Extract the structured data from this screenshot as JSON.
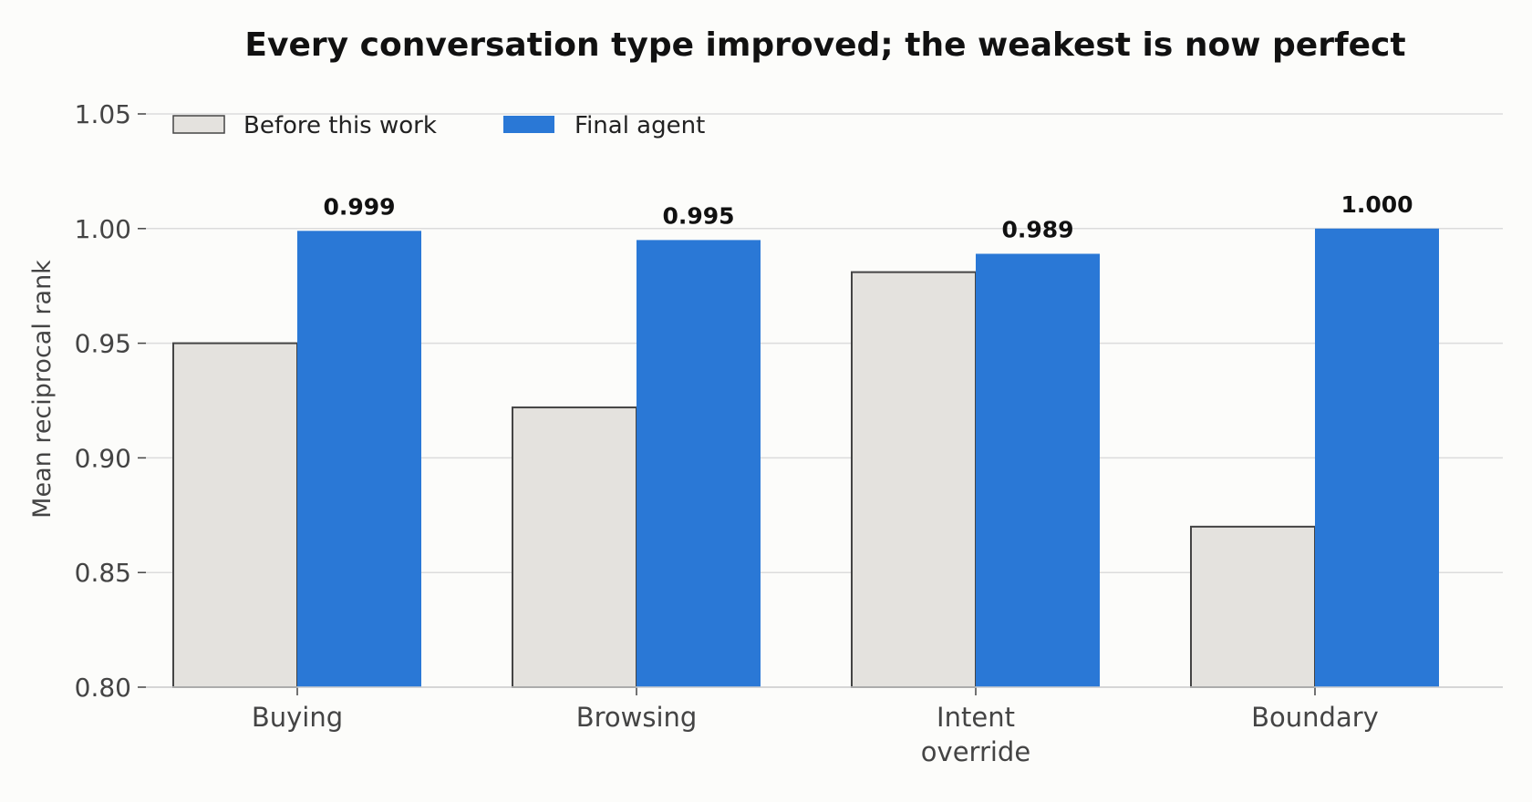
{
  "chart_data": {
    "type": "bar",
    "title": "Every conversation type improved; the weakest is now perfect",
    "ylabel": "Mean reciprocal rank",
    "xlabel": "",
    "ylim": [
      0.8,
      1.05
    ],
    "yticks": [
      "0.80",
      "0.85",
      "0.90",
      "0.95",
      "1.00",
      "1.05"
    ],
    "ytick_values": [
      0.8,
      0.85,
      0.9,
      0.95,
      1.0,
      1.05
    ],
    "categories": [
      [
        "Buying"
      ],
      [
        "Browsing"
      ],
      [
        "Intent",
        "override"
      ],
      [
        "Boundary"
      ]
    ],
    "series": [
      {
        "name": "Before this work",
        "values": [
          0.95,
          0.922,
          0.981,
          0.87
        ],
        "color": "#e4e2de",
        "stroke": "#444444"
      },
      {
        "name": "Final agent",
        "values": [
          0.999,
          0.995,
          0.989,
          1.0
        ],
        "color": "#2a78d6",
        "labels": [
          "0.999",
          "0.995",
          "0.989",
          "1.000"
        ]
      }
    ],
    "legend_position": "top-left",
    "grid": true
  }
}
